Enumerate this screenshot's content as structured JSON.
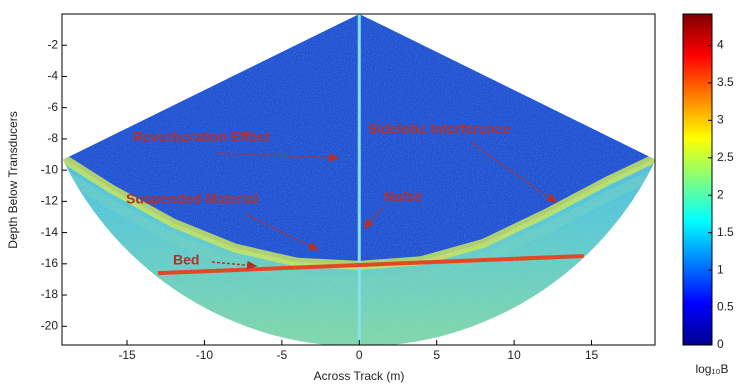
{
  "chart_data": {
    "type": "heatmap",
    "x_label": "Across Track (m)",
    "y_label": "Depth Below Transducers",
    "xlim": [
      -19.2,
      19.1
    ],
    "ylim": [
      -21.2,
      0
    ],
    "xticks": [
      -15,
      -10,
      -5,
      0,
      5,
      10,
      15
    ],
    "yticks": [
      -2,
      -4,
      -6,
      -8,
      -10,
      -12,
      -14,
      -16,
      -18,
      -20
    ],
    "colorbar": {
      "label": "log₁₀B",
      "lim": [
        0,
        4.42
      ],
      "ticks": [
        0,
        0.5,
        1,
        1.5,
        2,
        2.5,
        3,
        3.5,
        4
      ],
      "colormap": "jet"
    },
    "annotations": [
      "Reverberation Effect",
      "Sidelobe Interference",
      "Suspended Material",
      "Noise",
      "Bed"
    ]
  }
}
